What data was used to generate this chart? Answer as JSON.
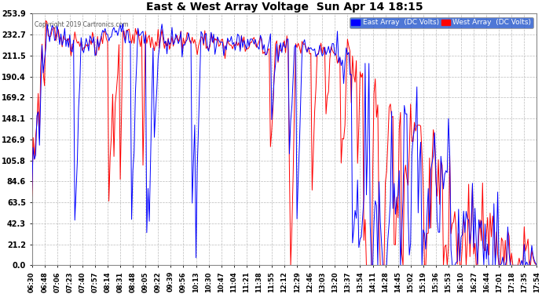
{
  "title": "East & West Array Voltage  Sun Apr 14 18:15",
  "copyright": "Copyright 2019 Cartronics.com",
  "legend_east": "East Array  (DC Volts)",
  "legend_west": "West Array  (DC Volts)",
  "east_color": "#0000ff",
  "west_color": "#ff0000",
  "background_color": "#ffffff",
  "plot_bg_color": "#ffffff",
  "grid_color": "#bbbbbb",
  "yticks": [
    0.0,
    21.2,
    42.3,
    63.5,
    84.6,
    105.8,
    126.9,
    148.1,
    169.2,
    190.4,
    211.5,
    232.7,
    253.9
  ],
  "ymin": 0.0,
  "ymax": 253.9,
  "xtick_labels": [
    "06:30",
    "06:48",
    "07:06",
    "07:23",
    "07:40",
    "07:57",
    "08:14",
    "08:31",
    "08:48",
    "09:05",
    "09:22",
    "09:39",
    "09:56",
    "10:13",
    "10:30",
    "10:47",
    "11:04",
    "11:21",
    "11:38",
    "11:55",
    "12:12",
    "12:29",
    "12:46",
    "13:03",
    "13:20",
    "13:37",
    "13:54",
    "14:11",
    "14:28",
    "14:45",
    "15:02",
    "15:19",
    "15:36",
    "15:53",
    "16:10",
    "16:27",
    "16:44",
    "17:01",
    "17:18",
    "17:35",
    "17:54"
  ],
  "line_width": 0.7,
  "title_fontsize": 10,
  "tick_fontsize": 6,
  "ytick_fontsize": 7
}
